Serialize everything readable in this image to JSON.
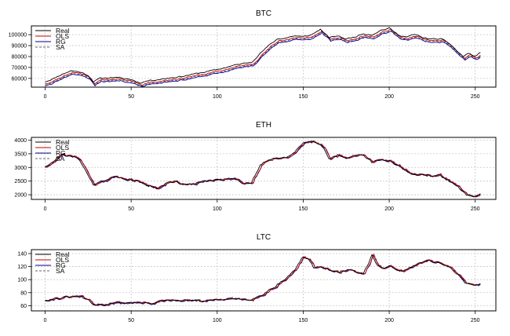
{
  "chart_data": [
    {
      "type": "line",
      "title": "BTC",
      "xlim": [
        -8,
        262
      ],
      "ylim": [
        52000,
        108000
      ],
      "xticks": [
        0,
        50,
        100,
        150,
        200,
        250
      ],
      "yticks": [
        60000,
        70000,
        80000,
        90000,
        100000
      ],
      "grid": true,
      "legend": "top-left",
      "series": [
        {
          "name": "Real",
          "color": "#000000",
          "dash": "",
          "lag": 0,
          "offset": 0,
          "noise": 500,
          "seed": 11
        },
        {
          "name": "OLS",
          "color": "#cc0000",
          "dash": "",
          "lag": 1,
          "offset": -1500,
          "noise": 250,
          "seed": 12
        },
        {
          "name": "RG",
          "color": "#000099",
          "dash": "",
          "lag": 1,
          "offset": -3200,
          "noise": 250,
          "seed": 13
        },
        {
          "name": "SA",
          "color": "#666666",
          "dash": "3,2",
          "lag": 1,
          "offset": -2400,
          "noise": 250,
          "seed": 14
        }
      ],
      "trend": [
        [
          0,
          57000
        ],
        [
          5,
          60000
        ],
        [
          10,
          64000
        ],
        [
          15,
          67000
        ],
        [
          20,
          66000
        ],
        [
          25,
          63000
        ],
        [
          28,
          57000
        ],
        [
          32,
          60000
        ],
        [
          40,
          61000
        ],
        [
          45,
          60000
        ],
        [
          50,
          59000
        ],
        [
          55,
          56000
        ],
        [
          60,
          58000
        ],
        [
          70,
          60000
        ],
        [
          80,
          62000
        ],
        [
          90,
          65000
        ],
        [
          100,
          68000
        ],
        [
          110,
          72000
        ],
        [
          120,
          75000
        ],
        [
          125,
          83000
        ],
        [
          130,
          90000
        ],
        [
          135,
          96000
        ],
        [
          140,
          97000
        ],
        [
          145,
          99000
        ],
        [
          150,
          98000
        ],
        [
          155,
          100000
        ],
        [
          160,
          105000
        ],
        [
          165,
          97000
        ],
        [
          170,
          99000
        ],
        [
          175,
          96000
        ],
        [
          180,
          98000
        ],
        [
          185,
          101000
        ],
        [
          190,
          100000
        ],
        [
          195,
          104000
        ],
        [
          200,
          106000
        ],
        [
          205,
          100000
        ],
        [
          210,
          98000
        ],
        [
          215,
          100000
        ],
        [
          220,
          97000
        ],
        [
          225,
          96000
        ],
        [
          230,
          96000
        ],
        [
          235,
          92000
        ],
        [
          240,
          84000
        ],
        [
          243,
          80000
        ],
        [
          246,
          83000
        ],
        [
          250,
          80000
        ],
        [
          253,
          84000
        ]
      ]
    },
    {
      "type": "line",
      "title": "ETH",
      "xlim": [
        -8,
        262
      ],
      "ylim": [
        1830,
        4100
      ],
      "xticks": [
        0,
        50,
        100,
        150,
        200,
        250
      ],
      "yticks": [
        2000,
        2500,
        3000,
        3500,
        4000
      ],
      "grid": true,
      "legend": "top-left",
      "series": [
        {
          "name": "Real",
          "color": "#000000",
          "dash": "",
          "lag": 0,
          "offset": 0,
          "noise": 40,
          "seed": 21
        },
        {
          "name": "OLS",
          "color": "#cc0000",
          "dash": "",
          "lag": 1,
          "offset": 0,
          "noise": 20,
          "seed": 22
        },
        {
          "name": "RG",
          "color": "#000099",
          "dash": "",
          "lag": 1,
          "offset": -15,
          "noise": 20,
          "seed": 23
        },
        {
          "name": "SA",
          "color": "#666666",
          "dash": "3,2",
          "lag": 1,
          "offset": 10,
          "noise": 20,
          "seed": 24
        }
      ],
      "trend": [
        [
          0,
          3050
        ],
        [
          5,
          3250
        ],
        [
          10,
          3500
        ],
        [
          15,
          3400
        ],
        [
          20,
          3300
        ],
        [
          25,
          2700
        ],
        [
          28,
          2350
        ],
        [
          32,
          2500
        ],
        [
          40,
          2650
        ],
        [
          50,
          2550
        ],
        [
          60,
          2350
        ],
        [
          65,
          2250
        ],
        [
          70,
          2400
        ],
        [
          75,
          2500
        ],
        [
          80,
          2400
        ],
        [
          90,
          2450
        ],
        [
          100,
          2550
        ],
        [
          110,
          2600
        ],
        [
          115,
          2450
        ],
        [
          120,
          2450
        ],
        [
          125,
          3100
        ],
        [
          130,
          3300
        ],
        [
          135,
          3350
        ],
        [
          140,
          3400
        ],
        [
          145,
          3500
        ],
        [
          150,
          3900
        ],
        [
          155,
          3950
        ],
        [
          160,
          3900
        ],
        [
          165,
          3350
        ],
        [
          170,
          3450
        ],
        [
          175,
          3300
        ],
        [
          180,
          3450
        ],
        [
          185,
          3500
        ],
        [
          190,
          3200
        ],
        [
          195,
          3250
        ],
        [
          200,
          3300
        ],
        [
          205,
          3050
        ],
        [
          210,
          2900
        ],
        [
          215,
          2750
        ],
        [
          220,
          2700
        ],
        [
          225,
          2700
        ],
        [
          230,
          2700
        ],
        [
          235,
          2500
        ],
        [
          240,
          2300
        ],
        [
          245,
          1950
        ],
        [
          250,
          1950
        ],
        [
          253,
          2000
        ]
      ]
    },
    {
      "type": "line",
      "title": "LTC",
      "xlim": [
        -8,
        262
      ],
      "ylim": [
        52,
        146
      ],
      "xticks": [
        0,
        50,
        100,
        150,
        200,
        250
      ],
      "yticks": [
        60,
        80,
        100,
        120,
        140
      ],
      "grid": true,
      "legend": "top-left",
      "series": [
        {
          "name": "Real",
          "color": "#000000",
          "dash": "",
          "lag": 0,
          "offset": 0,
          "noise": 1.6,
          "seed": 31
        },
        {
          "name": "OLS",
          "color": "#cc0000",
          "dash": "",
          "lag": 1,
          "offset": 0,
          "noise": 0.8,
          "seed": 32
        },
        {
          "name": "RG",
          "color": "#000099",
          "dash": "",
          "lag": 1,
          "offset": -0.6,
          "noise": 0.8,
          "seed": 33
        },
        {
          "name": "SA",
          "color": "#666666",
          "dash": "3,2",
          "lag": 1,
          "offset": 0.4,
          "noise": 0.8,
          "seed": 34
        }
      ],
      "trend": [
        [
          0,
          69
        ],
        [
          5,
          71
        ],
        [
          10,
          72
        ],
        [
          15,
          73
        ],
        [
          20,
          74
        ],
        [
          25,
          68
        ],
        [
          28,
          61
        ],
        [
          32,
          62
        ],
        [
          40,
          64
        ],
        [
          50,
          65
        ],
        [
          60,
          64
        ],
        [
          65,
          66
        ],
        [
          70,
          67
        ],
        [
          80,
          68
        ],
        [
          90,
          67
        ],
        [
          100,
          69
        ],
        [
          110,
          70
        ],
        [
          120,
          71
        ],
        [
          125,
          75
        ],
        [
          130,
          84
        ],
        [
          135,
          93
        ],
        [
          140,
          102
        ],
        [
          145,
          115
        ],
        [
          150,
          135
        ],
        [
          153,
          132
        ],
        [
          156,
          118
        ],
        [
          160,
          122
        ],
        [
          165,
          115
        ],
        [
          170,
          110
        ],
        [
          175,
          116
        ],
        [
          180,
          112
        ],
        [
          185,
          108
        ],
        [
          190,
          136
        ],
        [
          193,
          122
        ],
        [
          197,
          118
        ],
        [
          200,
          120
        ],
        [
          205,
          112
        ],
        [
          210,
          115
        ],
        [
          215,
          122
        ],
        [
          220,
          130
        ],
        [
          225,
          128
        ],
        [
          230,
          126
        ],
        [
          235,
          118
        ],
        [
          240,
          107
        ],
        [
          244,
          96
        ],
        [
          248,
          92
        ],
        [
          253,
          94
        ]
      ]
    }
  ]
}
